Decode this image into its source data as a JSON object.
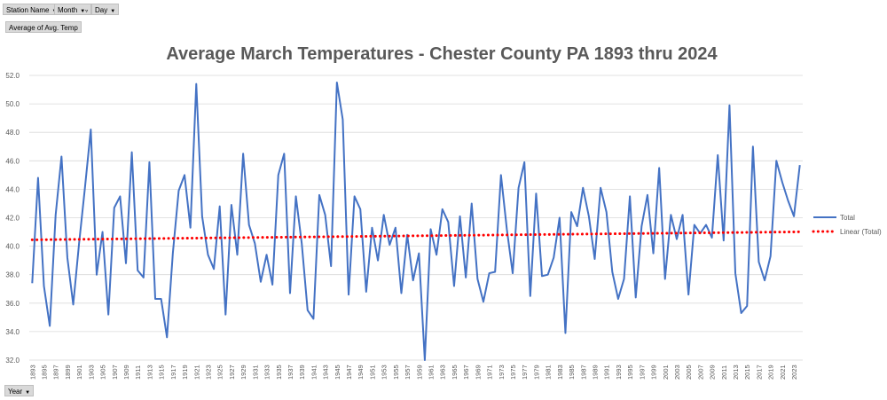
{
  "pivot": {
    "fields": [
      {
        "label": "Station Name",
        "icon": "dropdown-arrow-icon"
      },
      {
        "label": "Month",
        "icon": "filter-dropdown-icon"
      },
      {
        "label": "Day",
        "icon": "dropdown-arrow-icon"
      }
    ],
    "value_field": "Average of Avg. Temp",
    "axis_field": "Year"
  },
  "colors": {
    "series": "#4472c4",
    "trend": "#ff0000",
    "grid": "#d9d9d9",
    "text": "#595959"
  },
  "chart_data": {
    "type": "line",
    "title": "Average March Temperatures - Chester County PA 1893 thru 2024",
    "xlabel": "",
    "ylabel": "",
    "ylim": [
      32,
      52
    ],
    "yticks": [
      "32.0",
      "34.0",
      "36.0",
      "38.0",
      "40.0",
      "42.0",
      "44.0",
      "46.0",
      "48.0",
      "50.0",
      "52.0"
    ],
    "x_start": 1893,
    "x_end": 2024,
    "xtick_years": [
      1893,
      1895,
      1897,
      1899,
      1901,
      1903,
      1905,
      1907,
      1909,
      1911,
      1913,
      1915,
      1917,
      1919,
      1921,
      1923,
      1925,
      1927,
      1929,
      1931,
      1933,
      1935,
      1937,
      1939,
      1941,
      1943,
      1945,
      1947,
      1949,
      1951,
      1953,
      1955,
      1957,
      1959,
      1961,
      1963,
      1965,
      1967,
      1969,
      1971,
      1973,
      1975,
      1977,
      1979,
      1981,
      1983,
      1985,
      1987,
      1989,
      1991,
      1993,
      1995,
      1997,
      1999,
      2001,
      2003,
      2005,
      2007,
      2009,
      2011,
      2013,
      2015,
      2017,
      2019,
      2021,
      2023
    ],
    "grid": "horizontal",
    "legend_position": "right",
    "series": [
      {
        "name": "Total",
        "values": [
          37.4,
          44.8,
          37.2,
          34.4,
          42.2,
          46.3,
          39.2,
          35.9,
          40.2,
          44.1,
          48.2,
          38.0,
          41.0,
          35.2,
          42.7,
          43.5,
          38.8,
          46.6,
          38.3,
          37.8,
          45.9,
          36.3,
          36.3,
          33.6,
          39.5,
          43.9,
          45.0,
          41.3,
          51.4,
          42.1,
          39.4,
          38.4,
          42.8,
          35.2,
          42.9,
          39.4,
          46.5,
          41.5,
          40.2,
          37.5,
          39.4,
          37.3,
          45.0,
          46.5,
          36.7,
          43.5,
          40.2,
          35.5,
          34.9,
          43.6,
          42.2,
          38.6,
          51.5,
          48.9,
          36.6,
          43.5,
          42.6,
          36.8,
          41.3,
          39.0,
          42.2,
          40.1,
          41.3,
          36.7,
          40.8,
          37.6,
          39.5,
          32.0,
          41.2,
          39.4,
          42.6,
          41.7,
          37.2,
          42.1,
          37.8,
          43.0,
          37.7,
          36.1,
          38.1,
          38.2,
          45.0,
          41.2,
          38.1,
          44.1,
          45.9,
          36.5,
          43.7,
          37.9,
          38.0,
          39.2,
          42.0,
          33.9,
          42.4,
          41.4,
          44.1,
          42.1,
          39.1,
          44.1,
          42.4,
          38.2,
          36.3,
          37.7,
          43.5,
          36.4,
          41.4,
          43.6,
          39.5,
          45.5,
          37.7,
          42.2,
          40.5,
          42.2,
          36.6,
          41.5,
          40.9,
          41.5,
          40.6,
          46.4,
          40.4,
          49.9,
          38.1,
          35.3,
          35.8,
          47.0,
          38.9,
          37.6,
          39.3,
          46.0,
          44.5,
          43.2,
          42.1,
          45.7
        ]
      },
      {
        "name": "Linear (Total)",
        "values": [
          40.45,
          41.01
        ]
      }
    ]
  }
}
